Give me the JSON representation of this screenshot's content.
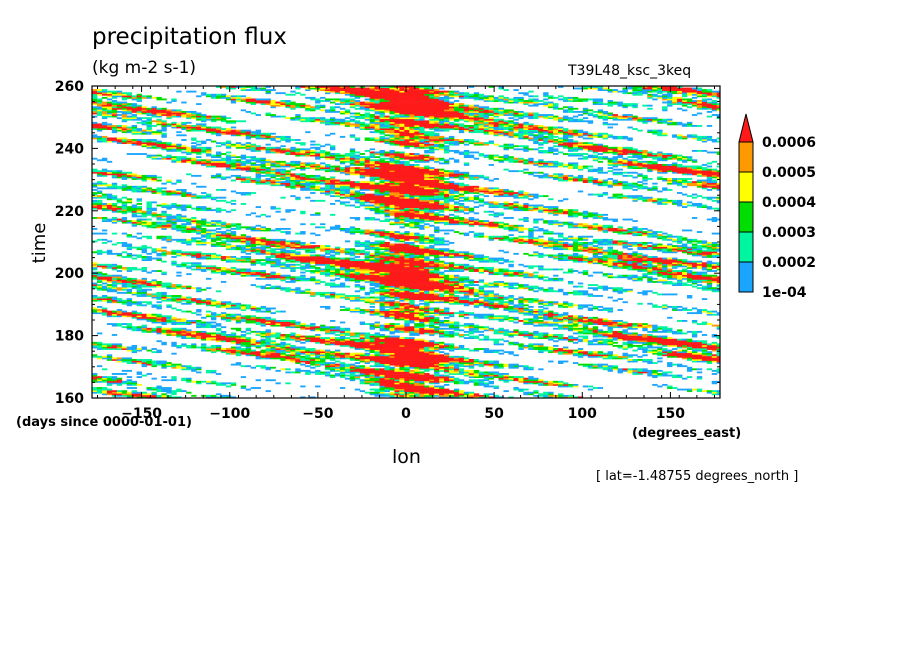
{
  "chart_data": {
    "type": "heatmap",
    "title": "precipitation flux",
    "units": "(kg m-2 s-1)",
    "run_label": "T39L48_ksc_3keq",
    "xlabel": "lon",
    "ylabel": "time",
    "x_units": "(degrees_east)",
    "y_units": "(days since 0000-01-01)",
    "annotation": "[ lat=-1.48755 degrees_north ]",
    "xlim": [
      -178.125,
      178.125
    ],
    "ylim": [
      160,
      260
    ],
    "x_ticks": [
      -150,
      -100,
      -50,
      0,
      50,
      100,
      150
    ],
    "x_tick_labels": [
      "−150",
      "−100",
      "−50",
      "0",
      "50",
      "100",
      "150"
    ],
    "y_ticks": [
      160,
      180,
      200,
      220,
      240,
      260
    ],
    "y_tick_labels": [
      "160",
      "180",
      "200",
      "220",
      "240",
      "260"
    ],
    "colorbar": {
      "levels": [
        "1e-04",
        "0.0002",
        "0.0003",
        "0.0004",
        "0.0005",
        "0.0006"
      ],
      "colors": [
        "#1aa5ff",
        "#00f5a0",
        "#00dd00",
        "#ffff00",
        "#ff9900",
        "#ff1a1a"
      ],
      "extend": "max"
    },
    "features": {
      "strong_convection_band_lon": 0,
      "strong_convection_band_halfwidth_deg": 18,
      "dominant_propagation": "westward streaks",
      "active_periods": [
        {
          "t": 176,
          "strength": 0.9
        },
        {
          "t": 202,
          "strength": 1.0
        },
        {
          "t": 230,
          "strength": 0.8
        },
        {
          "t": 253,
          "strength": 0.9
        }
      ]
    }
  },
  "colors": {
    "background": "#ffffff",
    "axes": "#000000"
  }
}
